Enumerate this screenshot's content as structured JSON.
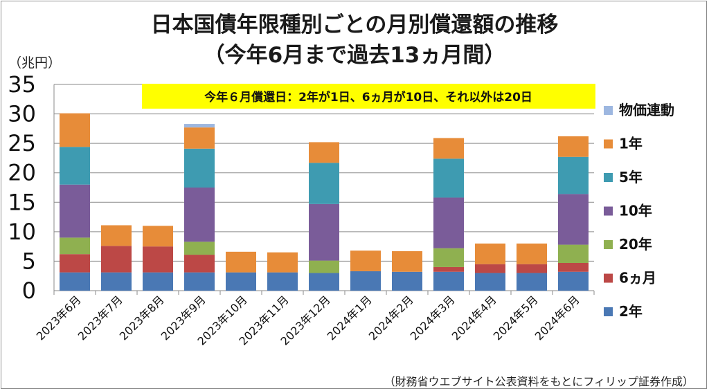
{
  "chart_data": {
    "type": "bar",
    "stacked": true,
    "title_line1": "日本国債年限種別ごとの月別償還額の推移",
    "title_line2": "（今年6月まで過去13ヵ月間）",
    "unit_label": "（兆円）",
    "annotation": "今年６月償還日：2年が1日、6ヵ月が10日、それ以外は20日",
    "source": "（財務省ウエブサイト公表資料をもとにフィリップ証券作成）",
    "ylim": [
      0,
      35
    ],
    "yticks": [
      "0",
      "5",
      "10",
      "15",
      "20",
      "25",
      "30",
      "35"
    ],
    "grid": true,
    "legend_position": "right",
    "categories": [
      "2023年6月",
      "2023年7月",
      "2023年8月",
      "2023年9月",
      "2023年10月",
      "2023年11月",
      "2023年12月",
      "2024年1月",
      "2024年2月",
      "2024年3月",
      "2024年4月",
      "2024年5月",
      "2024年6月"
    ],
    "series": [
      {
        "name": "2年",
        "color": "#4a78b4",
        "values": [
          3.1,
          3.1,
          3.1,
          3.1,
          3.1,
          3.1,
          3.0,
          3.3,
          3.2,
          3.2,
          3.0,
          3.0,
          3.2
        ]
      },
      {
        "name": "6ヵ月",
        "color": "#bc4846",
        "values": [
          3.1,
          4.5,
          4.4,
          3.0,
          0,
          0,
          0,
          0,
          0,
          0.8,
          1.5,
          1.5,
          1.5
        ]
      },
      {
        "name": "20年",
        "color": "#8fb050",
        "values": [
          2.8,
          0,
          0,
          2.2,
          0,
          0,
          2.1,
          0,
          0,
          3.2,
          0,
          0,
          3.1
        ]
      },
      {
        "name": "10年",
        "color": "#7a5c99",
        "values": [
          9.0,
          0,
          0,
          9.2,
          0,
          0,
          9.6,
          0,
          0,
          8.6,
          0,
          0,
          8.6
        ]
      },
      {
        "name": "5年",
        "color": "#3e9bb1",
        "values": [
          6.4,
          0,
          0,
          6.6,
          0,
          0,
          7.0,
          0,
          0,
          6.6,
          0,
          0,
          6.3
        ]
      },
      {
        "name": "1年",
        "color": "#e78c39",
        "values": [
          5.7,
          3.5,
          3.5,
          3.6,
          3.5,
          3.4,
          3.5,
          3.5,
          3.5,
          3.5,
          3.5,
          3.5,
          3.5
        ]
      },
      {
        "name": "物価連動",
        "color": "#9db7e0",
        "values": [
          0,
          0,
          0,
          0.6,
          0,
          0,
          0,
          0,
          0,
          0,
          0,
          0,
          0
        ]
      }
    ],
    "legend_order": [
      "物価連動",
      "1年",
      "5年",
      "10年",
      "20年",
      "6ヵ月",
      "2年"
    ]
  }
}
